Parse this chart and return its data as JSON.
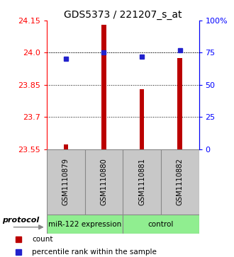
{
  "title": "GDS5373 / 221207_s_at",
  "samples": [
    "GSM1110879",
    "GSM1110880",
    "GSM1110881",
    "GSM1110882"
  ],
  "bar_values": [
    23.572,
    24.13,
    23.83,
    23.975
  ],
  "percentile_values": [
    70,
    75.5,
    72,
    77
  ],
  "ylim_left": [
    23.55,
    24.15
  ],
  "ylim_right": [
    0,
    100
  ],
  "yticks_left": [
    23.55,
    23.7,
    23.85,
    24.0,
    24.15
  ],
  "yticks_right": [
    0,
    25,
    50,
    75,
    100
  ],
  "ytick_labels_right": [
    "0",
    "25",
    "50",
    "75",
    "100%"
  ],
  "bar_color": "#bb0000",
  "dot_color": "#2222cc",
  "bar_bottom": 23.55,
  "grid_ticks": [
    23.7,
    23.85,
    24.0
  ],
  "group1_label": "miR-122 expression",
  "group2_label": "control",
  "protocol_label": "protocol",
  "group_color": "#90ee90",
  "box_color": "#c8c8c8",
  "legend_count_label": "count",
  "legend_pct_label": "percentile rank within the sample",
  "title_fontsize": 10,
  "tick_fontsize": 8,
  "bar_width": 0.12
}
